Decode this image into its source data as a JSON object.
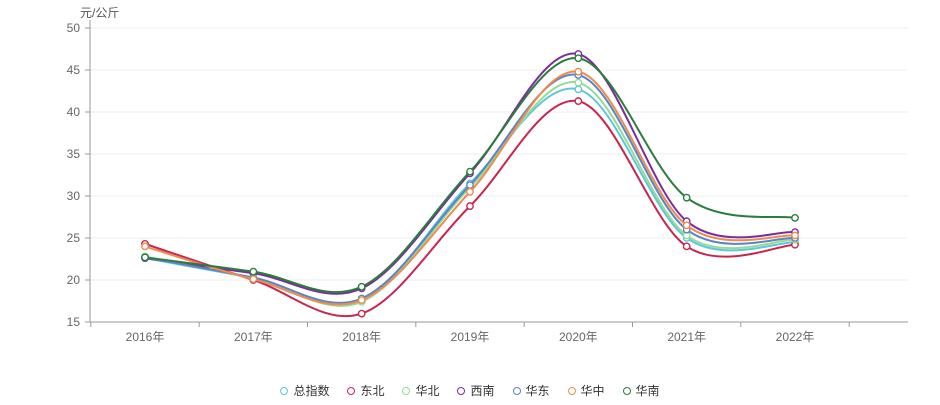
{
  "unit_label": "元/公斤",
  "chart_data": {
    "type": "line",
    "title": "",
    "xlabel": "",
    "ylabel": "元/公斤",
    "categories": [
      "2016年",
      "2017年",
      "2018年",
      "2019年",
      "2020年",
      "2021年",
      "2022年"
    ],
    "series": [
      {
        "name": "总指数",
        "color": "#5fc7da",
        "values": [
          22.6,
          20.2,
          17.5,
          31.5,
          42.7,
          25.0,
          24.5
        ]
      },
      {
        "name": "东北",
        "color": "#c9254f",
        "values": [
          24.3,
          20.0,
          16.0,
          28.8,
          41.3,
          24.0,
          24.2
        ]
      },
      {
        "name": "华北",
        "color": "#93db96",
        "values": [
          22.8,
          20.2,
          17.4,
          31.0,
          43.5,
          25.3,
          24.8
        ]
      },
      {
        "name": "西南",
        "color": "#7b2d9b",
        "values": [
          22.6,
          20.8,
          19.0,
          32.7,
          46.9,
          27.0,
          25.7
        ]
      },
      {
        "name": "华东",
        "color": "#5b84c4",
        "values": [
          22.7,
          20.3,
          17.8,
          31.3,
          44.4,
          26.0,
          25.0
        ]
      },
      {
        "name": "华中",
        "color": "#ef8a4c",
        "values": [
          24.0,
          20.1,
          17.6,
          30.5,
          44.8,
          26.5,
          25.3
        ]
      },
      {
        "name": "华南",
        "color": "#2a7d3f",
        "values": [
          22.7,
          21.0,
          19.2,
          32.9,
          46.4,
          29.8,
          27.4
        ]
      }
    ],
    "ylim": [
      15,
      50
    ],
    "ytick_step": 5,
    "grid": true,
    "legend_position": "bottom",
    "axis_color": "#999999",
    "grid_color": "#ececec",
    "tick_label_color": "#666666"
  }
}
